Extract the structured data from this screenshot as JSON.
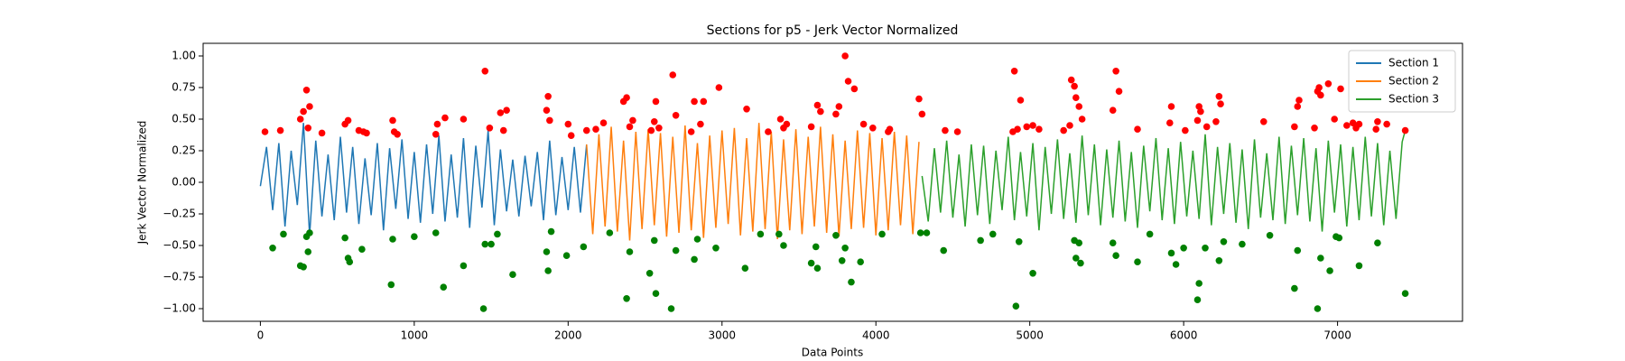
{
  "chart_data": {
    "type": "line",
    "title": "Sections for p5 - Jerk Vector Normalized",
    "xlabel": "Data Points",
    "ylabel": "Jerk Vector Normalized",
    "xlim": [
      -372,
      7812
    ],
    "ylim": [
      -1.1,
      1.1
    ],
    "xticks": [
      0,
      1000,
      2000,
      3000,
      4000,
      5000,
      6000,
      7000
    ],
    "yticks": [
      {
        "value": -1.0,
        "label": "−1.00"
      },
      {
        "value": -0.75,
        "label": "−0.75"
      },
      {
        "value": -0.5,
        "label": "−0.50"
      },
      {
        "value": -0.25,
        "label": "−0.25"
      },
      {
        "value": 0,
        "label": "0.00"
      },
      {
        "value": 0.25,
        "label": "0.25"
      },
      {
        "value": 0.5,
        "label": "0.50"
      },
      {
        "value": 0.75,
        "label": "0.75"
      },
      {
        "value": 1.0,
        "label": "1.00"
      }
    ],
    "grid": false,
    "legend": "upper right",
    "series": [
      {
        "name": "Section 1",
        "color": "#1f77b4",
        "x": [
          0,
          40,
          80,
          120,
          160,
          200,
          240,
          280,
          320,
          360,
          400,
          440,
          480,
          520,
          560,
          600,
          640,
          680,
          720,
          760,
          800,
          840,
          880,
          920,
          960,
          1000,
          1040,
          1080,
          1120,
          1160,
          1200,
          1240,
          1280,
          1320,
          1360,
          1400,
          1440,
          1480,
          1520,
          1560,
          1600,
          1640,
          1680,
          1720,
          1760,
          1800,
          1840,
          1880,
          1920,
          1960,
          2000,
          2040,
          2080,
          2120
        ],
        "values": [
          -0.03,
          0.28,
          -0.22,
          0.31,
          -0.35,
          0.25,
          -0.18,
          0.47,
          -0.42,
          0.33,
          -0.27,
          0.22,
          -0.3,
          0.36,
          -0.24,
          0.28,
          -0.33,
          0.19,
          -0.26,
          0.31,
          -0.38,
          0.27,
          -0.21,
          0.34,
          -0.29,
          0.24,
          -0.32,
          0.3,
          -0.25,
          0.37,
          -0.31,
          0.22,
          -0.28,
          0.35,
          -0.36,
          0.29,
          -0.2,
          0.41,
          -0.34,
          0.26,
          -0.23,
          0.18,
          -0.27,
          0.21,
          -0.19,
          0.24,
          -0.3,
          0.33,
          -0.26,
          0.2,
          -0.22,
          0.28,
          -0.24,
          0.3
        ]
      },
      {
        "name": "Section 2",
        "color": "#ff7f0e",
        "x": [
          2120,
          2160,
          2200,
          2240,
          2280,
          2320,
          2360,
          2400,
          2440,
          2480,
          2520,
          2560,
          2600,
          2640,
          2680,
          2720,
          2760,
          2800,
          2840,
          2880,
          2920,
          2960,
          3000,
          3040,
          3080,
          3120,
          3160,
          3200,
          3240,
          3280,
          3320,
          3360,
          3400,
          3440,
          3480,
          3520,
          3560,
          3600,
          3640,
          3680,
          3720,
          3760,
          3800,
          3840,
          3880,
          3920,
          3960,
          4000,
          4040,
          4080,
          4120,
          4160,
          4200,
          4240,
          4280
        ],
        "values": [
          0.3,
          -0.41,
          0.38,
          -0.35,
          0.44,
          -0.39,
          0.33,
          -0.46,
          0.4,
          -0.37,
          0.42,
          -0.34,
          0.39,
          -0.43,
          0.36,
          -0.4,
          0.45,
          -0.38,
          0.31,
          -0.44,
          0.37,
          -0.36,
          0.41,
          -0.33,
          0.43,
          -0.42,
          0.35,
          -0.39,
          0.47,
          -0.37,
          0.4,
          -0.45,
          0.34,
          -0.38,
          0.42,
          -0.41,
          0.36,
          -0.35,
          0.44,
          -0.4,
          0.38,
          -0.43,
          0.33,
          -0.37,
          0.41,
          -0.36,
          0.39,
          -0.42,
          0.35,
          -0.38,
          0.4,
          -0.34,
          0.37,
          -0.41,
          0.32
        ]
      },
      {
        "name": "Section 3",
        "color": "#2ca02c",
        "x": [
          4300,
          4340,
          4380,
          4420,
          4460,
          4500,
          4540,
          4580,
          4620,
          4660,
          4700,
          4740,
          4780,
          4820,
          4860,
          4900,
          4940,
          4980,
          5020,
          5060,
          5100,
          5140,
          5180,
          5220,
          5260,
          5300,
          5340,
          5380,
          5420,
          5460,
          5500,
          5540,
          5580,
          5620,
          5660,
          5700,
          5740,
          5780,
          5820,
          5860,
          5900,
          5940,
          5980,
          6020,
          6060,
          6100,
          6140,
          6180,
          6220,
          6260,
          6300,
          6340,
          6380,
          6420,
          6460,
          6500,
          6540,
          6580,
          6620,
          6660,
          6700,
          6740,
          6780,
          6820,
          6860,
          6900,
          6940,
          6980,
          7020,
          7060,
          7100,
          7140,
          7180,
          7220,
          7260,
          7300,
          7340,
          7380,
          7420,
          7440
        ],
        "values": [
          0.05,
          -0.31,
          0.27,
          -0.24,
          0.33,
          -0.28,
          0.22,
          -0.35,
          0.3,
          -0.26,
          0.29,
          -0.33,
          0.25,
          -0.22,
          0.36,
          -0.3,
          0.24,
          -0.27,
          0.31,
          -0.38,
          0.28,
          -0.25,
          0.34,
          -0.29,
          0.23,
          -0.32,
          0.37,
          -0.26,
          0.3,
          -0.34,
          0.26,
          -0.28,
          0.33,
          -0.31,
          0.24,
          -0.36,
          0.29,
          -0.23,
          0.35,
          -0.3,
          0.27,
          -0.33,
          0.32,
          -0.27,
          0.25,
          -0.29,
          0.38,
          -0.34,
          0.28,
          -0.25,
          0.31,
          -0.32,
          0.26,
          -0.37,
          0.34,
          -0.28,
          0.23,
          -0.3,
          0.36,
          -0.33,
          0.29,
          -0.26,
          0.35,
          -0.31,
          0.27,
          -0.39,
          0.33,
          -0.24,
          0.3,
          -0.35,
          0.28,
          -0.3,
          0.36,
          -0.27,
          0.31,
          -0.34,
          0.25,
          -0.29,
          0.32,
          0.41
        ]
      }
    ],
    "markers": [
      {
        "color": "red",
        "x": [
          30,
          130,
          260,
          280,
          300,
          310,
          320,
          400,
          550,
          570,
          640,
          670,
          690,
          860,
          870,
          890,
          1140,
          1150,
          1200,
          1320,
          1460,
          1490,
          1560,
          1580,
          1600,
          1860,
          1870,
          1880,
          2000,
          2020,
          2120,
          2180,
          2230,
          2360,
          2380,
          2400,
          2420,
          2540,
          2560,
          2570,
          2590,
          2680,
          2700,
          2800,
          2820,
          2860,
          2880,
          2980,
          3160,
          3300,
          3380,
          3400,
          3420,
          3580,
          3620,
          3640,
          3740,
          3760,
          3800,
          3820,
          3860,
          3920,
          3980,
          4080,
          4090,
          4280,
          4300,
          4450,
          4530,
          4890,
          4900,
          4920,
          4940,
          4980,
          5020,
          5060,
          5220,
          5260,
          5270,
          5290,
          5300,
          5320,
          5340,
          5540,
          5560,
          5580,
          5700,
          5910,
          5920,
          6010,
          6090,
          6100,
          6110,
          6150,
          6210,
          6230,
          6240,
          6520,
          6720,
          6740,
          6750,
          6850,
          6870,
          6880,
          6890,
          6940,
          6980,
          7020,
          7060,
          7100,
          7120,
          7140,
          7250,
          7260,
          7320,
          7440
        ],
        "values": [
          0.4,
          0.41,
          0.5,
          0.56,
          0.73,
          0.43,
          0.6,
          0.39,
          0.46,
          0.49,
          0.41,
          0.4,
          0.39,
          0.49,
          0.4,
          0.38,
          0.38,
          0.46,
          0.51,
          0.5,
          0.88,
          0.43,
          0.55,
          0.41,
          0.57,
          0.57,
          0.68,
          0.49,
          0.46,
          0.37,
          0.41,
          0.42,
          0.47,
          0.64,
          0.67,
          0.44,
          0.49,
          0.41,
          0.48,
          0.64,
          0.43,
          0.85,
          0.53,
          0.4,
          0.64,
          0.46,
          0.64,
          0.75,
          0.58,
          0.4,
          0.5,
          0.43,
          0.46,
          0.44,
          0.61,
          0.56,
          0.54,
          0.6,
          1.0,
          0.8,
          0.74,
          0.46,
          0.43,
          0.4,
          0.42,
          0.66,
          0.54,
          0.41,
          0.4,
          0.4,
          0.88,
          0.42,
          0.65,
          0.44,
          0.45,
          0.42,
          0.41,
          0.45,
          0.81,
          0.76,
          0.67,
          0.6,
          0.5,
          0.57,
          0.88,
          0.72,
          0.42,
          0.47,
          0.6,
          0.41,
          0.49,
          0.6,
          0.56,
          0.44,
          0.48,
          0.68,
          0.62,
          0.48,
          0.44,
          0.6,
          0.65,
          0.43,
          0.72,
          0.75,
          0.69,
          0.78,
          0.5,
          0.74,
          0.45,
          0.47,
          0.43,
          0.46,
          0.42,
          0.48,
          0.46,
          0.41
        ]
      },
      {
        "color": "green",
        "x": [
          80,
          150,
          260,
          280,
          300,
          310,
          320,
          550,
          570,
          580,
          660,
          850,
          860,
          1000,
          1140,
          1190,
          1320,
          1450,
          1460,
          1500,
          1540,
          1640,
          1860,
          1870,
          1890,
          1990,
          2100,
          2270,
          2380,
          2400,
          2530,
          2560,
          2570,
          2670,
          2700,
          2820,
          2840,
          2960,
          3150,
          3250,
          3370,
          3400,
          3580,
          3610,
          3620,
          3740,
          3780,
          3800,
          3840,
          3900,
          4040,
          4290,
          4330,
          4440,
          4680,
          4760,
          4910,
          4930,
          5020,
          5290,
          5300,
          5320,
          5330,
          5540,
          5560,
          5700,
          5780,
          5920,
          5950,
          6000,
          6090,
          6100,
          6140,
          6230,
          6260,
          6380,
          6560,
          6720,
          6740,
          6870,
          6890,
          6950,
          6990,
          7010,
          7140,
          7260,
          7440
        ],
        "values": [
          -0.52,
          -0.41,
          -0.66,
          -0.67,
          -0.43,
          -0.55,
          -0.4,
          -0.44,
          -0.6,
          -0.63,
          -0.53,
          -0.81,
          -0.45,
          -0.43,
          -0.4,
          -0.83,
          -0.66,
          -1.0,
          -0.49,
          -0.49,
          -0.41,
          -0.73,
          -0.55,
          -0.7,
          -0.39,
          -0.58,
          -0.51,
          -0.4,
          -0.92,
          -0.55,
          -0.72,
          -0.46,
          -0.88,
          -1.0,
          -0.54,
          -0.61,
          -0.45,
          -0.52,
          -0.68,
          -0.41,
          -0.41,
          -0.5,
          -0.64,
          -0.51,
          -0.68,
          -0.42,
          -0.62,
          -0.52,
          -0.79,
          -0.63,
          -0.41,
          -0.4,
          -0.4,
          -0.54,
          -0.46,
          -0.41,
          -0.98,
          -0.47,
          -0.72,
          -0.46,
          -0.6,
          -0.48,
          -0.64,
          -0.48,
          -0.58,
          -0.63,
          -0.41,
          -0.56,
          -0.65,
          -0.52,
          -0.93,
          -0.8,
          -0.52,
          -0.62,
          -0.47,
          -0.49,
          -0.42,
          -0.84,
          -0.54,
          -1.0,
          -0.6,
          -0.7,
          -0.43,
          -0.44,
          -0.66,
          -0.48,
          -0.88
        ]
      }
    ]
  }
}
